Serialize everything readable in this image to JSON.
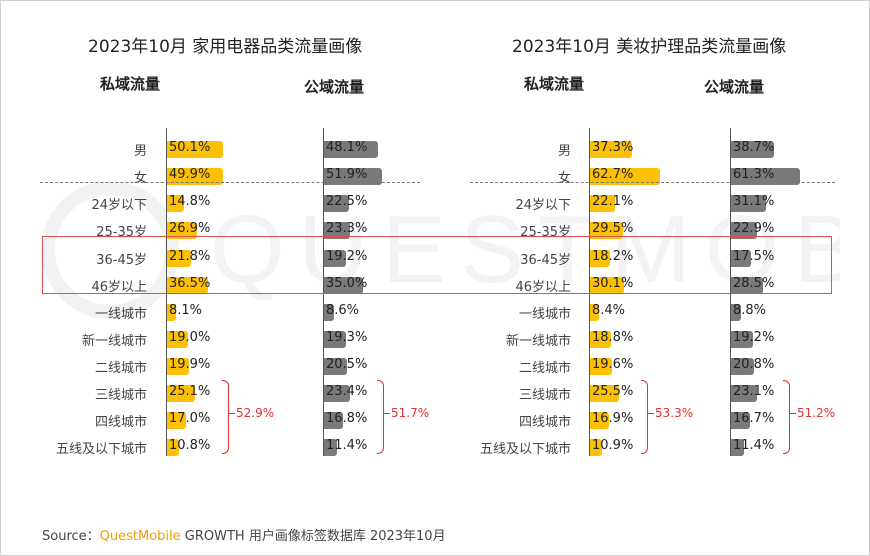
{
  "source": {
    "prefix": "Source：",
    "brand": "QuestMobile",
    "rest": " GROWTH 用户画像标签数据库 2023年10月"
  },
  "colors": {
    "private": "#fcc006",
    "public": "#7a7a7a",
    "highlight": "#e05050"
  },
  "watermark": "QUESTMOBILE",
  "chart_data": [
    {
      "type": "bar",
      "title": "2023年10月 家用电器品类流量画像",
      "categories": [
        "男",
        "女",
        "24岁以下",
        "25-35岁",
        "36-45岁",
        "46岁以上",
        "一线城市",
        "新一线城市",
        "二线城市",
        "三线城市",
        "四线城市",
        "五线及以下城市"
      ],
      "series": [
        {
          "name": "私域流量",
          "values": [
            50.1,
            49.9,
            14.8,
            26.9,
            21.8,
            36.5,
            8.1,
            19.0,
            19.9,
            25.1,
            17.0,
            10.8
          ],
          "labels": [
            "50.1%",
            "49.9%",
            "14.8%",
            "26.9%",
            "21.8%",
            "36.5%",
            "8.1%",
            "19.0%",
            "19.9%",
            "25.1%",
            "17.0%",
            "10.8%"
          ]
        },
        {
          "name": "公域流量",
          "values": [
            48.1,
            51.9,
            22.5,
            23.3,
            19.2,
            35.0,
            8.6,
            19.3,
            20.5,
            23.4,
            16.8,
            11.4
          ],
          "labels": [
            "48.1%",
            "51.9%",
            "22.5%",
            "23.3%",
            "19.2%",
            "35.0%",
            "8.6%",
            "19.3%",
            "20.5%",
            "23.4%",
            "16.8%",
            "11.4%"
          ]
        }
      ],
      "brace_totals": [
        "52.9%",
        "51.7%"
      ]
    },
    {
      "type": "bar",
      "title": "2023年10月 美妆护理品类流量画像",
      "categories": [
        "男",
        "女",
        "24岁以下",
        "25-35岁",
        "36-45岁",
        "46岁以上",
        "一线城市",
        "新一线城市",
        "二线城市",
        "三线城市",
        "四线城市",
        "五线及以下城市"
      ],
      "series": [
        {
          "name": "私域流量",
          "values": [
            37.3,
            62.7,
            22.1,
            29.5,
            18.2,
            30.1,
            8.4,
            18.8,
            19.6,
            25.5,
            16.9,
            10.9
          ],
          "labels": [
            "37.3%",
            "62.7%",
            "22.1%",
            "29.5%",
            "18.2%",
            "30.1%",
            "8.4%",
            "18.8%",
            "19.6%",
            "25.5%",
            "16.9%",
            "10.9%"
          ]
        },
        {
          "name": "公域流量",
          "values": [
            38.7,
            61.3,
            31.1,
            22.9,
            17.5,
            28.5,
            8.8,
            19.2,
            20.8,
            23.1,
            16.7,
            11.4
          ],
          "labels": [
            "38.7%",
            "61.3%",
            "31.1%",
            "22.9%",
            "17.5%",
            "28.5%",
            "8.8%",
            "19.2%",
            "20.8%",
            "23.1%",
            "16.7%",
            "11.4%"
          ]
        }
      ],
      "brace_totals": [
        "53.3%",
        "51.2%"
      ]
    }
  ]
}
